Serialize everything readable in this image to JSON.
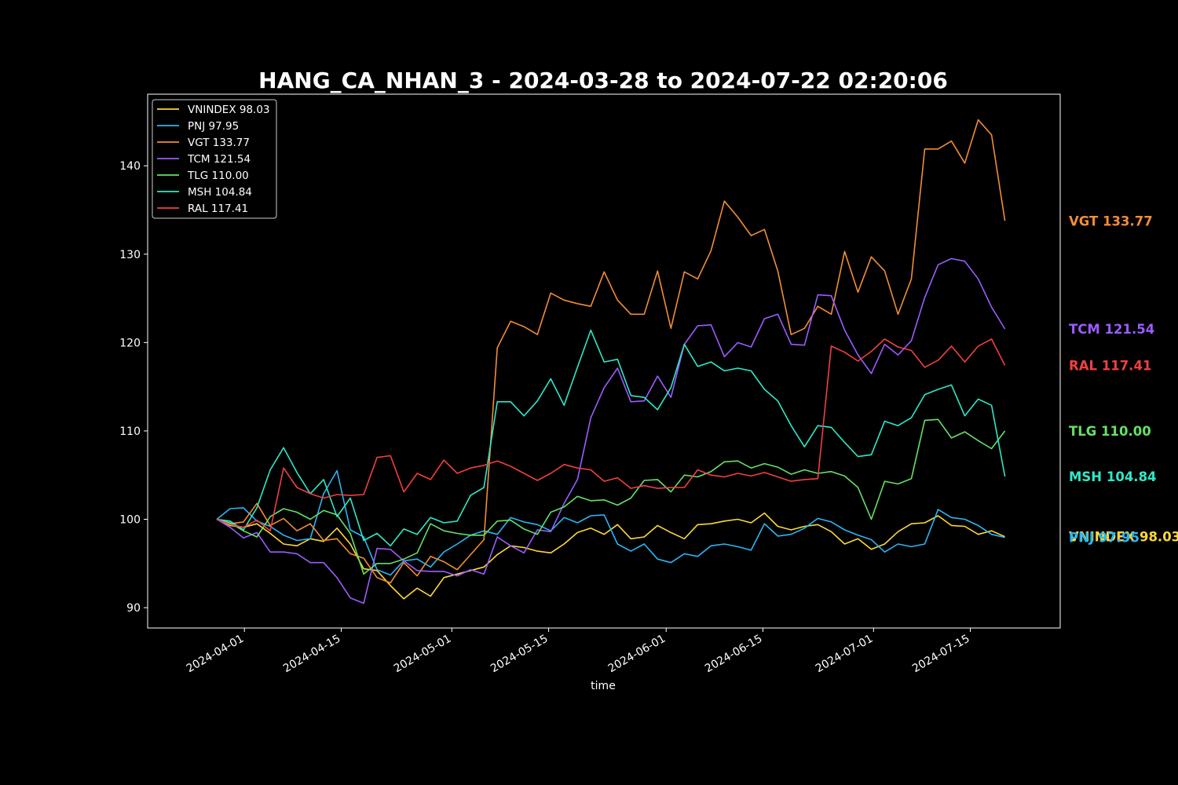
{
  "chart_data": {
    "type": "line",
    "title": "HANG_CA_NHAN_3 - 2024-03-28 to 2024-07-22 02:20:06",
    "xlabel": "time",
    "ylabel": "",
    "x_start": "2024-03-28",
    "x_end": "2024-07-20",
    "xlim": [
      "2024-03-18",
      "2024-07-28"
    ],
    "ylim": [
      87.7,
      148.1
    ],
    "yticks": [
      90,
      100,
      110,
      120,
      130,
      140
    ],
    "xticks": [
      "2024-04-01",
      "2024-04-15",
      "2024-05-01",
      "2024-05-15",
      "2024-06-01",
      "2024-06-15",
      "2024-07-01",
      "2024-07-15"
    ],
    "legend_position": "upper-left",
    "series": [
      {
        "name": "VNINDEX",
        "label": "VNINDEX 98.03",
        "end_label": "VNINDEX 98.03",
        "color": "#fdd835",
        "values": [
          100,
          99.3,
          99.1,
          99.5,
          98.4,
          97.2,
          97.0,
          97.8,
          97.5,
          99.0,
          97.2,
          94.4,
          94.2,
          92.5,
          91.0,
          92.2,
          91.3,
          93.4,
          93.8,
          94.2,
          94.6,
          96.0,
          97.0,
          96.8,
          96.4,
          96.2,
          97.2,
          98.5,
          99.0,
          98.3,
          99.4,
          97.8,
          98.0,
          99.3,
          98.5,
          97.8,
          99.4,
          99.5,
          99.8,
          100.0,
          99.6,
          100.7,
          99.2,
          98.8,
          99.2,
          99.4,
          98.6,
          97.2,
          97.8,
          96.6,
          97.2,
          98.6,
          99.5,
          99.6,
          100.4,
          99.3,
          99.2,
          98.3,
          98.7,
          98.03
        ]
      },
      {
        "name": "PNJ",
        "label": "PNJ 97.95",
        "end_label": "PNJ 97.95",
        "color": "#29b6f6",
        "values": [
          100,
          101.2,
          101.3,
          99.8,
          99.2,
          98.2,
          97.6,
          97.8,
          102.9,
          105.5,
          98.8,
          98.0,
          94.3,
          93.7,
          95.3,
          95.5,
          94.6,
          96.3,
          97.2,
          98.2,
          98.7,
          98.3,
          100.2,
          99.7,
          99.4,
          98.7,
          100.2,
          99.6,
          100.4,
          100.5,
          97.2,
          96.4,
          97.2,
          95.5,
          95.1,
          96.1,
          95.8,
          97.0,
          97.2,
          96.9,
          96.5,
          99.5,
          98.1,
          98.3,
          99.0,
          100.1,
          99.7,
          98.8,
          98.2,
          97.7,
          96.3,
          97.2,
          96.9,
          97.2,
          101.1,
          100.2,
          100.0,
          99.3,
          98.3,
          97.95
        ]
      },
      {
        "name": "VGT",
        "label": "VGT 133.77",
        "end_label": "VGT 133.77",
        "color": "#f28d35",
        "values": [
          100,
          99.5,
          99.7,
          101.8,
          99.3,
          100.1,
          98.7,
          99.5,
          97.6,
          97.8,
          96.1,
          95.6,
          93.4,
          92.8,
          95.1,
          93.6,
          95.8,
          95.2,
          94.3,
          96.0,
          97.7,
          119.4,
          122.4,
          121.8,
          120.9,
          125.6,
          124.8,
          124.4,
          124.1,
          128.0,
          124.8,
          123.2,
          123.2,
          128.1,
          121.6,
          128.0,
          127.2,
          130.4,
          136.0,
          134.2,
          132.1,
          132.8,
          128.1,
          120.9,
          121.6,
          124.1,
          123.2,
          130.3,
          125.7,
          129.7,
          128.1,
          123.2,
          127.2,
          141.9,
          141.9,
          142.8,
          140.3,
          145.2,
          143.5,
          133.77
        ]
      },
      {
        "name": "TCM",
        "label": "TCM 121.54",
        "end_label": "TCM 121.54",
        "color": "#9c5cff",
        "values": [
          100,
          99.1,
          97.9,
          98.5,
          96.3,
          96.3,
          96.1,
          95.1,
          95.1,
          93.4,
          91.1,
          90.5,
          96.7,
          96.6,
          95.3,
          94.2,
          94.1,
          94.1,
          93.6,
          94.3,
          93.8,
          98.0,
          97.0,
          96.2,
          98.8,
          98.6,
          101.8,
          104.5,
          111.5,
          114.9,
          117.1,
          113.3,
          113.4,
          116.2,
          113.8,
          119.8,
          121.9,
          122.0,
          118.4,
          120.0,
          119.5,
          122.7,
          123.2,
          119.8,
          119.7,
          125.4,
          125.3,
          121.4,
          118.6,
          116.5,
          119.8,
          118.6,
          120.2,
          125.1,
          128.8,
          129.5,
          129.2,
          127.2,
          124.0,
          121.54
        ]
      },
      {
        "name": "TLG",
        "label": "TLG 110.00",
        "end_label": "TLG 110.00",
        "color": "#66e066",
        "values": [
          100,
          99.6,
          98.7,
          98.0,
          100.3,
          101.2,
          100.8,
          100.0,
          101.0,
          100.5,
          98.4,
          93.8,
          95.0,
          95.0,
          95.5,
          96.2,
          99.5,
          98.7,
          98.4,
          98.2,
          98.2,
          99.8,
          99.9,
          98.9,
          98.3,
          100.8,
          101.4,
          102.6,
          102.1,
          102.2,
          101.6,
          102.4,
          104.4,
          104.5,
          103.1,
          105.0,
          104.8,
          105.4,
          106.5,
          106.6,
          105.8,
          106.3,
          105.9,
          105.1,
          105.6,
          105.2,
          105.4,
          104.9,
          103.6,
          100.0,
          104.3,
          104.0,
          104.6,
          111.2,
          111.3,
          109.2,
          109.9,
          108.9,
          108.0,
          110.0
        ]
      },
      {
        "name": "MSH",
        "label": "MSH 104.84",
        "end_label": "MSH 104.84",
        "color": "#2ee8c8",
        "values": [
          100,
          99.8,
          98.8,
          101.3,
          105.6,
          108.1,
          105.3,
          102.9,
          104.5,
          100.3,
          102.4,
          97.6,
          98.4,
          97.0,
          98.9,
          98.3,
          100.2,
          99.6,
          99.8,
          102.7,
          103.6,
          113.3,
          113.3,
          111.7,
          113.4,
          115.9,
          112.9,
          117.2,
          121.4,
          117.8,
          118.1,
          114.0,
          113.8,
          112.4,
          114.9,
          119.8,
          117.3,
          117.8,
          116.8,
          117.1,
          116.8,
          114.7,
          113.4,
          110.6,
          108.2,
          110.6,
          110.4,
          108.7,
          107.1,
          107.3,
          111.1,
          110.6,
          111.5,
          114.1,
          114.7,
          115.2,
          111.7,
          113.6,
          112.9,
          104.84
        ]
      },
      {
        "name": "RAL",
        "label": "RAL 117.41",
        "end_label": "RAL 117.41",
        "color": "#f04040",
        "values": [
          100,
          99.4,
          99.1,
          99.9,
          98.7,
          105.8,
          103.6,
          102.9,
          102.4,
          102.8,
          102.7,
          102.8,
          107.0,
          107.2,
          103.1,
          105.2,
          104.5,
          106.7,
          105.2,
          105.8,
          106.1,
          106.6,
          106.0,
          105.2,
          104.4,
          105.2,
          106.2,
          105.8,
          105.6,
          104.3,
          104.7,
          103.5,
          103.8,
          103.5,
          103.6,
          103.6,
          105.6,
          105.0,
          104.8,
          105.2,
          104.9,
          105.3,
          104.8,
          104.3,
          104.5,
          104.6,
          119.6,
          118.9,
          117.9,
          119.0,
          120.4,
          119.5,
          119.1,
          117.2,
          118.0,
          119.6,
          117.8,
          119.6,
          120.4,
          117.41
        ]
      }
    ]
  }
}
